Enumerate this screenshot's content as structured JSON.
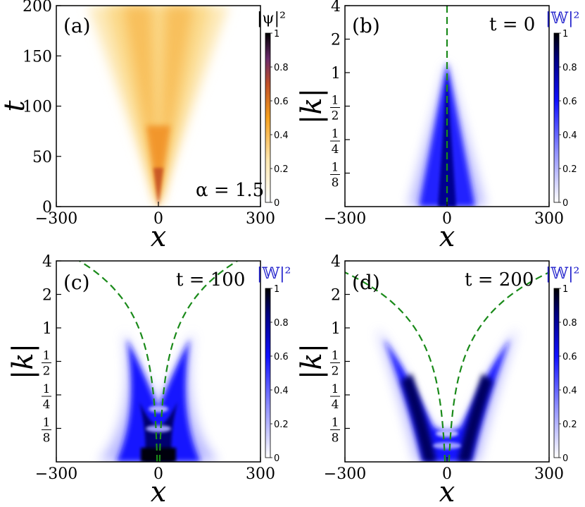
{
  "chart_data": [
    {
      "type": "heatmap",
      "panel_label": "(a)",
      "xlabel": "x",
      "ylabel": "t",
      "xlim": [
        -300,
        300
      ],
      "ylim": [
        0,
        200
      ],
      "xticks": [
        "-300",
        "0",
        "300"
      ],
      "yticks": [
        "0",
        "50",
        "100",
        "150",
        "200"
      ],
      "annotation": "α = 1.5",
      "colorbar": {
        "label": "|ψ|²",
        "ticks": [
          "0",
          "0.2",
          "0.4",
          "0.6",
          "0.8",
          "1"
        ],
        "range": [
          0,
          1
        ]
      },
      "colormap": "white-orange-purple-black"
    },
    {
      "type": "heatmap",
      "panel_label": "(b)",
      "xlabel": "x",
      "ylabel": "|k|",
      "xlim": [
        -300,
        300
      ],
      "yscale": "log2",
      "ylim": [
        0.0625,
        4
      ],
      "xticks": [
        "-300",
        "0",
        "300"
      ],
      "yticks": [
        "1/8",
        "1/4",
        "1/2",
        "1",
        "2",
        "4"
      ],
      "annotation": "t = 0",
      "colorbar": {
        "label": "|𝕎|²",
        "ticks": [
          "0",
          "0.2",
          "0.4",
          "0.6",
          "0.8",
          "1"
        ],
        "range": [
          0,
          1
        ]
      },
      "colormap": "white-blue-black",
      "overlay": "green dashed curve"
    },
    {
      "type": "heatmap",
      "panel_label": "(c)",
      "xlabel": "x",
      "ylabel": "|k|",
      "xlim": [
        -300,
        300
      ],
      "yscale": "log2",
      "ylim": [
        0.0625,
        4
      ],
      "xticks": [
        "-300",
        "0",
        "300"
      ],
      "yticks": [
        "1/8",
        "1/4",
        "1/2",
        "1",
        "2",
        "4"
      ],
      "annotation": "t = 100",
      "colorbar": {
        "label": "|𝕎|²",
        "ticks": [
          "0",
          "0.2",
          "0.4",
          "0.6",
          "0.8",
          "1"
        ],
        "range": [
          0,
          1
        ]
      },
      "colormap": "white-blue-black",
      "overlay": "green dashed curve"
    },
    {
      "type": "heatmap",
      "panel_label": "(d)",
      "xlabel": "x",
      "ylabel": "|k|",
      "xlim": [
        -300,
        300
      ],
      "yscale": "log2",
      "ylim": [
        0.0625,
        4
      ],
      "xticks": [
        "-300",
        "0",
        "300"
      ],
      "yticks": [
        "1/8",
        "1/4",
        "1/2",
        "1",
        "2",
        "4"
      ],
      "annotation": "t = 200",
      "colorbar": {
        "label": "|𝕎|²",
        "ticks": [
          "0",
          "0.2",
          "0.4",
          "0.6",
          "0.8",
          "1"
        ],
        "range": [
          0,
          1
        ]
      },
      "colormap": "white-blue-black",
      "overlay": "green dashed curve"
    }
  ],
  "colors": {
    "orange_light": "#fde3a6",
    "orange": "#f5a01e",
    "purple": "#6a2a6b",
    "blue": "#1010ff",
    "blue_dark": "#000050",
    "green_dash": "#1a8a1a",
    "cb_label_blue": "#2222cc"
  }
}
